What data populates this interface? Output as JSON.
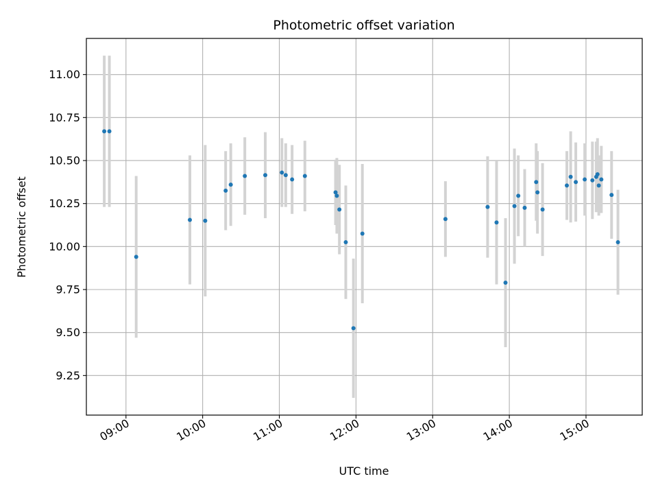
{
  "chart_data": {
    "type": "scatter",
    "title": "Photometric offset variation",
    "xlabel": "UTC time",
    "ylabel": "Photometric offset",
    "grid": true,
    "legend": "none",
    "colors": {
      "points": "#1f77b4",
      "errorbars": "#d3d3d3",
      "grid": "#b0b0b0"
    },
    "xlim": [
      "08:29",
      "15:44"
    ],
    "ylim": [
      9.02,
      11.21
    ],
    "x_ticks": [
      "09:00",
      "10:00",
      "11:00",
      "12:00",
      "13:00",
      "14:00",
      "15:00"
    ],
    "y_ticks": [
      "9.25",
      "9.50",
      "9.75",
      "10.00",
      "10.25",
      "10.50",
      "10.75",
      "11.00"
    ],
    "series": [
      {
        "errorbar": true,
        "points": [
          {
            "t": "08:43",
            "y": 10.67,
            "err": 0.44
          },
          {
            "t": "08:47",
            "y": 10.67,
            "err": 0.44
          },
          {
            "t": "09:08",
            "y": 9.94,
            "err": 0.47
          },
          {
            "t": "09:50",
            "y": 10.155,
            "err": 0.375
          },
          {
            "t": "10:02",
            "y": 10.15,
            "err": 0.44
          },
          {
            "t": "10:18",
            "y": 10.325,
            "err": 0.23
          },
          {
            "t": "10:22",
            "y": 10.36,
            "err": 0.24
          },
          {
            "t": "10:33",
            "y": 10.41,
            "err": 0.225
          },
          {
            "t": "10:49",
            "y": 10.415,
            "err": 0.25
          },
          {
            "t": "11:02",
            "y": 10.43,
            "err": 0.2
          },
          {
            "t": "11:05",
            "y": 10.415,
            "err": 0.185
          },
          {
            "t": "11:10",
            "y": 10.39,
            "err": 0.2
          },
          {
            "t": "11:20",
            "y": 10.41,
            "err": 0.205
          },
          {
            "t": "11:44",
            "y": 10.315,
            "err": 0.19
          },
          {
            "t": "11:45",
            "y": 10.295,
            "err": 0.22
          },
          {
            "t": "11:47",
            "y": 10.215,
            "err": 0.26
          },
          {
            "t": "11:52",
            "y": 10.025,
            "err": 0.33
          },
          {
            "t": "11:58",
            "y": 9.525,
            "err": 0.405
          },
          {
            "t": "12:05",
            "y": 10.075,
            "err": 0.405
          },
          {
            "t": "13:10",
            "y": 10.16,
            "err": 0.22
          },
          {
            "t": "13:43",
            "y": 10.23,
            "err": 0.295
          },
          {
            "t": "13:50",
            "y": 10.14,
            "err": 0.36
          },
          {
            "t": "13:57",
            "y": 9.79,
            "err": 0.375
          },
          {
            "t": "14:04",
            "y": 10.235,
            "err": 0.335
          },
          {
            "t": "14:07",
            "y": 10.295,
            "err": 0.235
          },
          {
            "t": "14:12",
            "y": 10.225,
            "err": 0.225
          },
          {
            "t": "14:21",
            "y": 10.375,
            "err": 0.225
          },
          {
            "t": "14:22",
            "y": 10.315,
            "err": 0.24
          },
          {
            "t": "14:26",
            "y": 10.215,
            "err": 0.27
          },
          {
            "t": "14:45",
            "y": 10.355,
            "err": 0.2
          },
          {
            "t": "14:48",
            "y": 10.405,
            "err": 0.265
          },
          {
            "t": "14:52",
            "y": 10.375,
            "err": 0.23
          },
          {
            "t": "14:59",
            "y": 10.39,
            "err": 0.21
          },
          {
            "t": "15:05",
            "y": 10.385,
            "err": 0.225
          },
          {
            "t": "15:08",
            "y": 10.405,
            "err": 0.205
          },
          {
            "t": "15:09",
            "y": 10.42,
            "err": 0.21
          },
          {
            "t": "15:10",
            "y": 10.355,
            "err": 0.175
          },
          {
            "t": "15:12",
            "y": 10.39,
            "err": 0.195
          },
          {
            "t": "15:20",
            "y": 10.3,
            "err": 0.255
          },
          {
            "t": "15:25",
            "y": 10.025,
            "err": 0.305
          }
        ]
      }
    ]
  }
}
